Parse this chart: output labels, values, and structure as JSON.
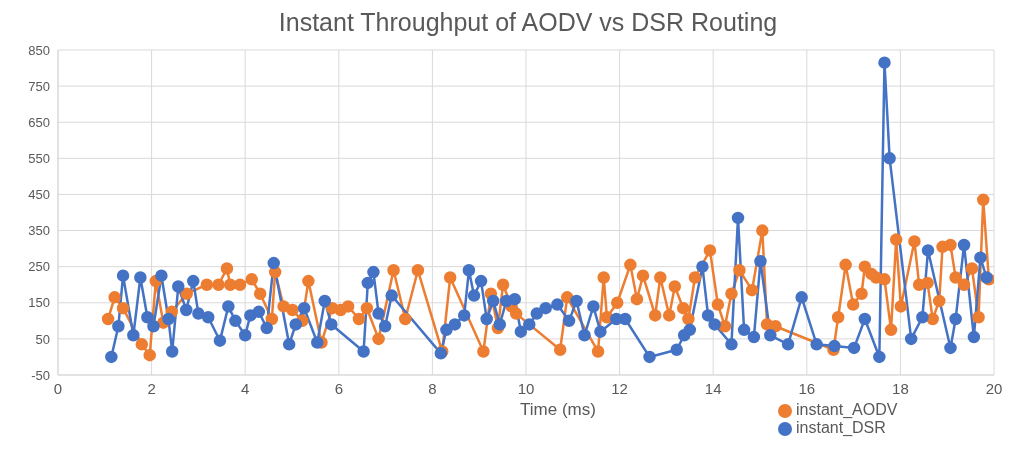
{
  "chart_data": {
    "type": "line",
    "title": "Instant Throughput of AODV vs DSR Routing",
    "xlabel": "Time (ms)",
    "xlim": [
      0,
      20
    ],
    "xticks": [
      0,
      2,
      4,
      6,
      8,
      10,
      12,
      14,
      16,
      18,
      20
    ],
    "ylim": [
      -50,
      850
    ],
    "yticks": [
      -50,
      50,
      150,
      250,
      350,
      450,
      550,
      650,
      750,
      850
    ],
    "grid": true,
    "legend": "bottom right",
    "marker": "circle",
    "line_style": "solid",
    "series": [
      {
        "name": "instant_AODV",
        "color": "#ed7d31",
        "x": [
          1.07,
          1.21,
          1.39,
          1.79,
          1.96,
          2.09,
          2.25,
          2.43,
          2.75,
          3.18,
          3.43,
          3.61,
          3.68,
          3.89,
          4.14,
          4.32,
          4.57,
          4.64,
          4.82,
          5.01,
          5.22,
          5.35,
          5.63,
          5.86,
          6.04,
          6.2,
          6.43,
          6.6,
          6.85,
          7.17,
          7.42,
          7.69,
          8.21,
          8.38,
          9.09,
          9.25,
          9.4,
          9.51,
          9.69,
          9.79,
          10.73,
          10.88,
          11.54,
          11.66,
          11.73,
          11.95,
          12.23,
          12.37,
          12.5,
          12.76,
          12.87,
          13.06,
          13.18,
          13.36,
          13.47,
          13.61,
          13.93,
          14.1,
          14.25,
          14.39,
          14.56,
          14.83,
          15.05,
          15.15,
          15.33,
          16.57,
          16.67,
          16.83,
          16.99,
          17.17,
          17.24,
          17.38,
          17.48,
          17.66,
          17.8,
          17.91,
          18.01,
          18.3,
          18.4,
          18.58,
          18.69,
          18.83,
          18.9,
          19.07,
          19.18,
          19.36,
          19.53,
          19.67,
          19.77,
          19.89
        ],
        "values": [
          105,
          165,
          135,
          35,
          5,
          210,
          95,
          125,
          175,
          200,
          200,
          245,
          200,
          200,
          215,
          175,
          105,
          235,
          140,
          130,
          100,
          210,
          40,
          135,
          130,
          140,
          105,
          135,
          50,
          240,
          105,
          240,
          15,
          220,
          15,
          175,
          80,
          200,
          140,
          120,
          20,
          165,
          15,
          220,
          110,
          150,
          255,
          160,
          225,
          115,
          220,
          115,
          195,
          135,
          105,
          220,
          295,
          145,
          85,
          175,
          240,
          185,
          350,
          90,
          85,
          20,
          110,
          255,
          145,
          175,
          250,
          230,
          220,
          215,
          75,
          325,
          140,
          320,
          200,
          205,
          105,
          155,
          305,
          310,
          220,
          200,
          245,
          110,
          435,
          215
        ]
      },
      {
        "name": "instant_DSR",
        "color": "#4472c4",
        "x": [
          1.14,
          1.29,
          1.39,
          1.61,
          1.76,
          1.91,
          2.04,
          2.21,
          2.36,
          2.44,
          2.57,
          2.74,
          2.89,
          3.0,
          3.21,
          3.46,
          3.64,
          3.79,
          4.0,
          4.11,
          4.29,
          4.46,
          4.61,
          4.94,
          5.08,
          5.26,
          5.54,
          5.7,
          5.84,
          6.53,
          6.62,
          6.74,
          6.85,
          6.99,
          7.13,
          8.18,
          8.3,
          8.48,
          8.68,
          8.78,
          8.89,
          9.04,
          9.16,
          9.3,
          9.44,
          9.58,
          9.76,
          9.89,
          10.07,
          10.23,
          10.42,
          10.67,
          10.92,
          11.08,
          11.25,
          11.44,
          11.59,
          11.93,
          12.12,
          12.64,
          13.22,
          13.38,
          13.5,
          13.77,
          13.89,
          14.03,
          14.39,
          14.53,
          14.66,
          14.87,
          15.01,
          15.22,
          15.6,
          15.89,
          16.21,
          16.59,
          17.01,
          17.24,
          17.55,
          17.66,
          17.77,
          18.23,
          18.47,
          18.59,
          19.07,
          19.18,
          19.36,
          19.57,
          19.71,
          19.84
        ],
        "values": [
          0,
          85,
          225,
          60,
          220,
          110,
          85,
          225,
          105,
          15,
          195,
          130,
          210,
          120,
          110,
          45,
          140,
          100,
          60,
          115,
          125,
          80,
          260,
          35,
          90,
          135,
          40,
          155,
          90,
          15,
          205,
          235,
          120,
          85,
          170,
          10,
          75,
          90,
          115,
          240,
          170,
          210,
          105,
          155,
          90,
          155,
          160,
          70,
          90,
          120,
          135,
          145,
          100,
          155,
          60,
          140,
          70,
          105,
          105,
          0,
          20,
          60,
          75,
          250,
          115,
          90,
          35,
          385,
          75,
          55,
          265,
          60,
          35,
          165,
          35,
          30,
          25,
          105,
          0,
          815,
          550,
          50,
          110,
          295,
          25,
          105,
          310,
          55,
          275,
          220
        ]
      }
    ]
  }
}
